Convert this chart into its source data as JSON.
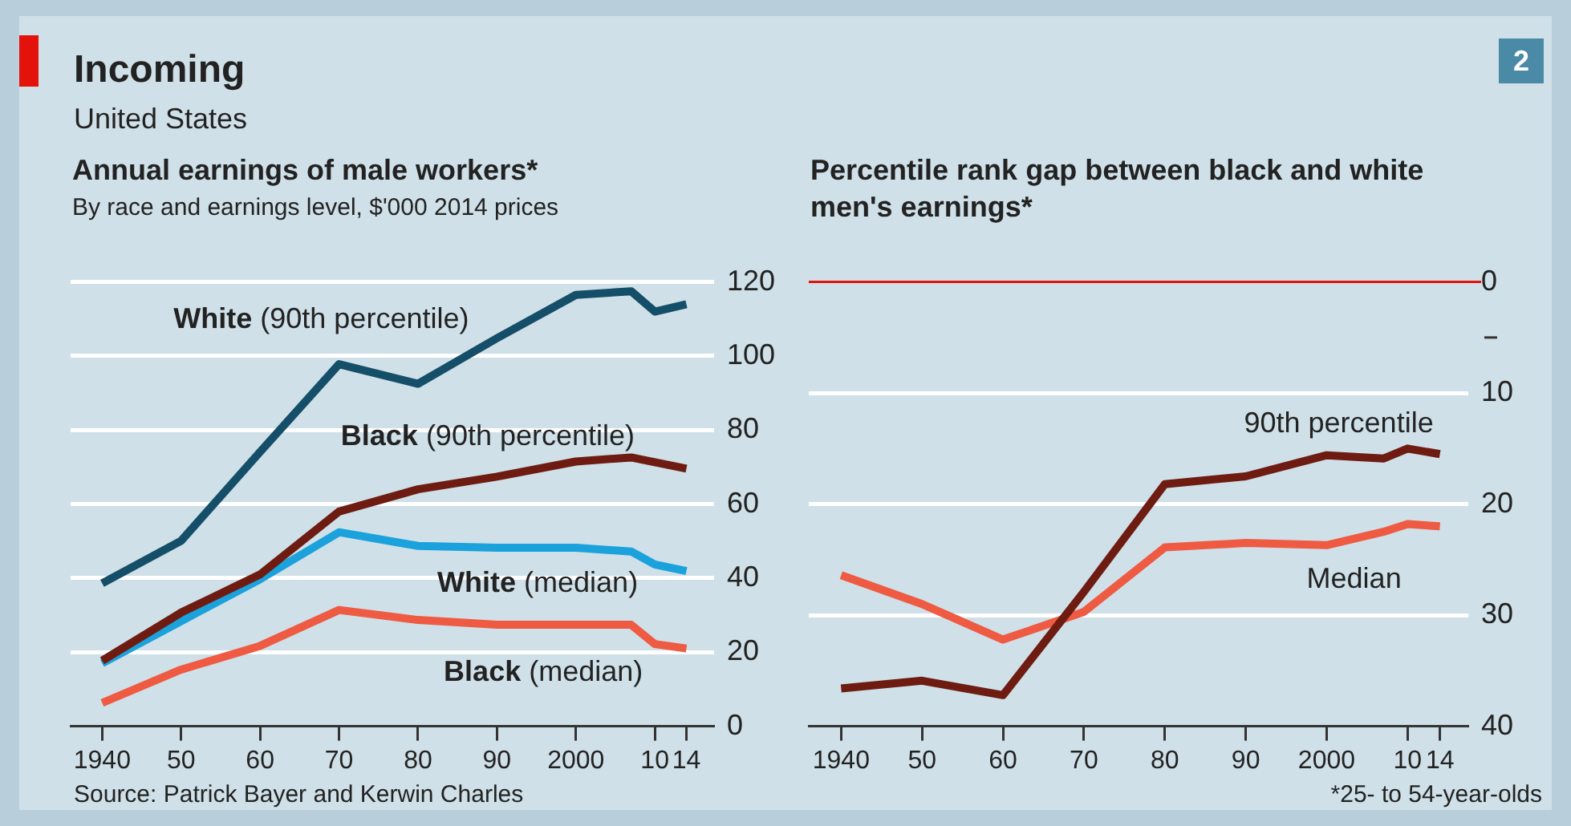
{
  "chart_data": [
    {
      "type": "line",
      "title": "Annual earnings of male workers*",
      "subtitle": "By race and earnings level, $'000 2014 prices",
      "annotations": [
        "Incoming",
        "United States",
        "2",
        "Source: Patrick Bayer and Kerwin Charles"
      ],
      "x": [
        1940,
        1950,
        1960,
        1970,
        1980,
        1990,
        2000,
        2007,
        2010,
        2014
      ],
      "xlim": [
        1936,
        2017.5
      ],
      "xticks": [
        {
          "value": 1940,
          "label": "1940"
        },
        {
          "value": 1950,
          "label": "50"
        },
        {
          "value": 1960,
          "label": "60"
        },
        {
          "value": 1970,
          "label": "70"
        },
        {
          "value": 1980,
          "label": "80"
        },
        {
          "value": 1990,
          "label": "90"
        },
        {
          "value": 2000,
          "label": "2000"
        },
        {
          "value": 2010,
          "label": "10"
        },
        {
          "value": 2014,
          "label": "14"
        }
      ],
      "ylim": [
        0,
        120
      ],
      "yticks": [
        0,
        20,
        40,
        60,
        80,
        100,
        120
      ],
      "grid": "y",
      "legend": false,
      "series": [
        {
          "name": "White (90th percentile)",
          "color": "#154e68",
          "values": [
            38.6,
            50.1,
            74.1,
            97.8,
            92.5,
            104.8,
            116.5,
            117.5,
            112,
            114
          ]
        },
        {
          "name": "Black (90th percentile)",
          "color": "#6e1c12",
          "values": [
            17.7,
            30.7,
            41,
            58,
            64,
            67.4,
            71.5,
            72.6,
            71.3,
            69.6
          ]
        },
        {
          "name": "White (median)",
          "color": "#1ba1dc",
          "values": [
            17,
            28.4,
            39.7,
            52.4,
            48.7,
            48.2,
            48.2,
            47.2,
            43.7,
            41.9
          ]
        },
        {
          "name": "Black (median)",
          "color": "#ef5a42",
          "values": [
            6.3,
            15.3,
            21.7,
            31.4,
            28.7,
            27.4,
            27.4,
            27.4,
            22.2,
            21
          ]
        }
      ]
    },
    {
      "type": "line",
      "title": "Percentile rank gap between black and white men's earnings*",
      "annotations": [
        "*25- to 54-year-olds"
      ],
      "x": [
        1940,
        1950,
        1960,
        1970,
        1980,
        1990,
        2000,
        2007,
        2010,
        2014
      ],
      "xlim": [
        1936,
        2017.5
      ],
      "xticks": [
        {
          "value": 1940,
          "label": "1940"
        },
        {
          "value": 1950,
          "label": "50"
        },
        {
          "value": 1960,
          "label": "60"
        },
        {
          "value": 1970,
          "label": "70"
        },
        {
          "value": 1980,
          "label": "80"
        },
        {
          "value": 1990,
          "label": "90"
        },
        {
          "value": 2000,
          "label": "2000"
        },
        {
          "value": 2010,
          "label": "10"
        },
        {
          "value": 2014,
          "label": "14"
        }
      ],
      "ylim": [
        40,
        0
      ],
      "yticks": [
        0,
        {
          "value": 5,
          "label": null
        },
        10,
        20,
        30,
        40
      ],
      "grid": "y",
      "legend": false,
      "ref_lines": [
        {
          "axis": "y",
          "value": 0,
          "color": "#e3120b"
        }
      ],
      "series": [
        {
          "name": "90th percentile",
          "color": "#6e1c12",
          "values": [
            36.6,
            35.9,
            37.2,
            27.9,
            18.2,
            17.5,
            15.6,
            15.9,
            15,
            15.5
          ]
        },
        {
          "name": "Median",
          "color": "#ef5a42",
          "values": [
            26.4,
            29,
            32.2,
            29.7,
            23.9,
            23.5,
            23.7,
            22.5,
            21.8,
            22
          ]
        }
      ]
    }
  ]
}
